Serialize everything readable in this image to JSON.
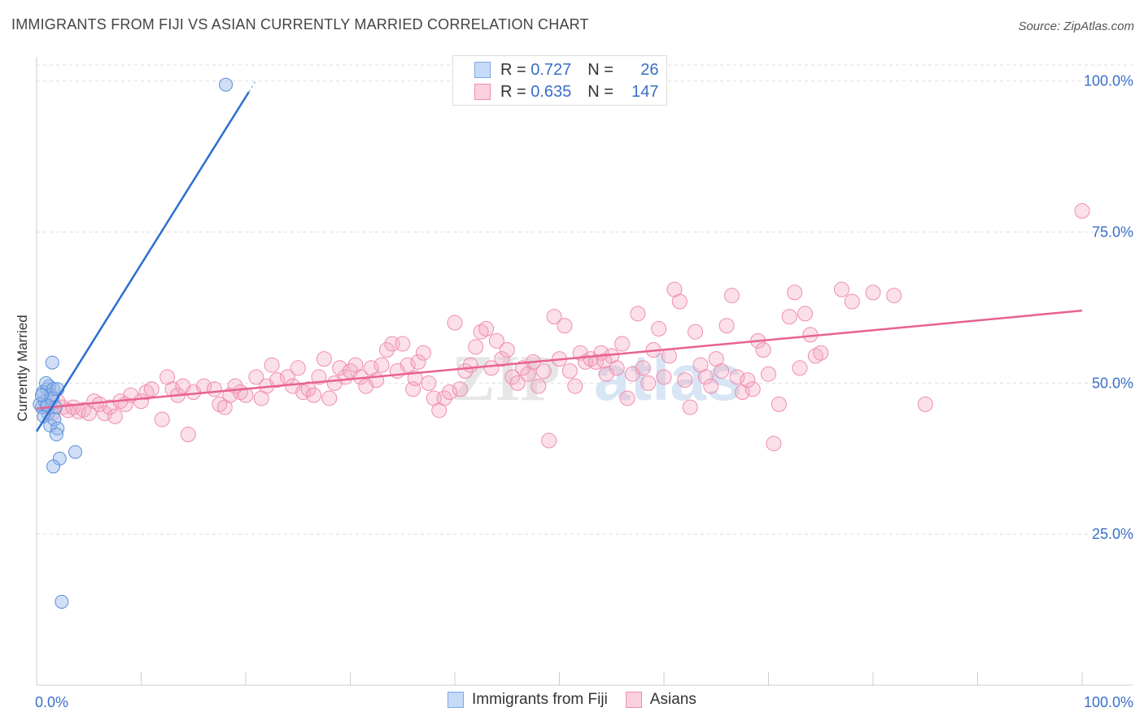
{
  "header": {
    "title": "IMMIGRANTS FROM FIJI VS ASIAN CURRENTLY MARRIED CORRELATION CHART",
    "source": "Source: ZipAtlas.com"
  },
  "legend": {
    "r_label": "R =",
    "n_label": "N =",
    "rows": [
      {
        "r": "0.727",
        "n": "26",
        "color": "#7aa7e6"
      },
      {
        "r": "0.635",
        "n": "147",
        "color": "#f08cb0"
      }
    ]
  },
  "bottom_legend": {
    "items": [
      "Immigrants from Fiji",
      "Asians"
    ]
  },
  "watermark": {
    "zip": "ZIP",
    "atlas": "atlas"
  },
  "chart_data": {
    "type": "scatter",
    "title": "IMMIGRANTS FROM FIJI VS ASIAN CURRENTLY MARRIED CORRELATION CHART",
    "xlabel": "",
    "ylabel": "Currently Married",
    "xlim": [
      0,
      100
    ],
    "ylim": [
      0,
      104
    ],
    "x_tick_labels": [
      "0.0%",
      "100.0%"
    ],
    "y_ticks": [
      25,
      50,
      75,
      100
    ],
    "y_tick_labels": [
      "25.0%",
      "50.0%",
      "75.0%",
      "100.0%"
    ],
    "grid": true,
    "legend_position": "top-center",
    "series": [
      {
        "name": "Immigrants from Fiji",
        "color": "#7aa7e6",
        "line_color": "#2b6fd1",
        "trend": {
          "x": [
            0,
            20.3
          ],
          "y": [
            42.0,
            98.2
          ]
        },
        "points": [
          [
            0.5,
            46
          ],
          [
            0.8,
            47
          ],
          [
            1.0,
            49
          ],
          [
            1.2,
            49.5
          ],
          [
            0.6,
            48.5
          ],
          [
            0.9,
            50
          ],
          [
            1.4,
            48
          ],
          [
            1.6,
            49
          ],
          [
            1.1,
            45
          ],
          [
            0.7,
            44.5
          ],
          [
            1.5,
            47.5
          ],
          [
            1.8,
            46
          ],
          [
            1.3,
            43
          ],
          [
            1.7,
            44
          ],
          [
            2.0,
            42.5
          ],
          [
            1.9,
            41.5
          ],
          [
            2.2,
            37.5
          ],
          [
            1.6,
            36.2
          ],
          [
            3.7,
            38.6
          ],
          [
            1.5,
            53.4
          ],
          [
            2.4,
            13.8
          ],
          [
            18.1,
            99.4
          ],
          [
            0.3,
            46.5
          ],
          [
            2.0,
            49
          ],
          [
            1.0,
            46.3
          ],
          [
            0.5,
            48
          ]
        ]
      },
      {
        "name": "Asians",
        "color": "#f4a6c1",
        "line_color": "#e8628f",
        "trend": {
          "x": [
            0,
            100
          ],
          "y": [
            45.8,
            62.0
          ]
        },
        "points": [
          [
            1.0,
            46
          ],
          [
            1.5,
            45
          ],
          [
            2.0,
            47
          ],
          [
            2.5,
            46
          ],
          [
            3.0,
            45.5
          ],
          [
            3.5,
            46
          ],
          [
            4.0,
            45.3
          ],
          [
            4.5,
            45.6
          ],
          [
            5.0,
            45
          ],
          [
            5.5,
            47
          ],
          [
            6.0,
            46.5
          ],
          [
            6.5,
            45
          ],
          [
            7.0,
            46
          ],
          [
            7.5,
            44.5
          ],
          [
            8.0,
            47
          ],
          [
            8.5,
            46.5
          ],
          [
            9.0,
            48
          ],
          [
            10.0,
            47
          ],
          [
            10.5,
            48.5
          ],
          [
            11.0,
            49
          ],
          [
            12.0,
            44
          ],
          [
            12.5,
            51
          ],
          [
            13.0,
            49
          ],
          [
            13.5,
            48
          ],
          [
            14.0,
            49.5
          ],
          [
            14.5,
            41.5
          ],
          [
            15.0,
            48.5
          ],
          [
            16.0,
            49.5
          ],
          [
            17.0,
            49
          ],
          [
            17.5,
            46.5
          ],
          [
            18.0,
            46
          ],
          [
            18.5,
            48
          ],
          [
            19.0,
            49.5
          ],
          [
            19.5,
            48.5
          ],
          [
            20.0,
            48
          ],
          [
            21.0,
            51
          ],
          [
            21.5,
            47.5
          ],
          [
            22.0,
            49.5
          ],
          [
            22.5,
            53
          ],
          [
            23.0,
            50.5
          ],
          [
            24.0,
            51
          ],
          [
            24.5,
            49.5
          ],
          [
            25.0,
            52.5
          ],
          [
            25.5,
            48.5
          ],
          [
            26.0,
            49
          ],
          [
            26.5,
            48
          ],
          [
            27.0,
            51
          ],
          [
            27.5,
            54
          ],
          [
            28.0,
            47.5
          ],
          [
            28.5,
            50
          ],
          [
            29.0,
            52.5
          ],
          [
            29.5,
            51
          ],
          [
            30.0,
            52
          ],
          [
            30.5,
            53
          ],
          [
            31.0,
            51
          ],
          [
            31.5,
            49.5
          ],
          [
            32.0,
            52.5
          ],
          [
            32.5,
            50.5
          ],
          [
            33.0,
            53
          ],
          [
            33.5,
            55.5
          ],
          [
            34.0,
            56.5
          ],
          [
            34.5,
            52
          ],
          [
            35.0,
            56.5
          ],
          [
            35.5,
            53
          ],
          [
            36.0,
            49
          ],
          [
            36.5,
            53.5
          ],
          [
            37.0,
            55
          ],
          [
            37.5,
            50
          ],
          [
            38.0,
            47.5
          ],
          [
            38.5,
            45.5
          ],
          [
            39.0,
            47.5
          ],
          [
            39.5,
            48.5
          ],
          [
            40.0,
            60
          ],
          [
            40.5,
            49
          ],
          [
            41.0,
            52
          ],
          [
            41.5,
            53
          ],
          [
            42.0,
            56
          ],
          [
            42.5,
            58.5
          ],
          [
            43.0,
            59
          ],
          [
            43.5,
            52.5
          ],
          [
            44.0,
            57
          ],
          [
            44.5,
            54
          ],
          [
            45.0,
            55.5
          ],
          [
            45.5,
            51
          ],
          [
            46.0,
            50
          ],
          [
            46.5,
            52.5
          ],
          [
            47.0,
            51.5
          ],
          [
            47.5,
            53.5
          ],
          [
            48.0,
            49.5
          ],
          [
            48.5,
            52
          ],
          [
            49.0,
            40.5
          ],
          [
            49.5,
            61
          ],
          [
            50.0,
            54
          ],
          [
            50.5,
            59.5
          ],
          [
            51.0,
            52
          ],
          [
            51.5,
            49.5
          ],
          [
            52.0,
            55
          ],
          [
            52.5,
            53.5
          ],
          [
            53.0,
            54
          ],
          [
            53.5,
            53.5
          ],
          [
            54.0,
            55
          ],
          [
            54.5,
            51.5
          ],
          [
            55.0,
            54.5
          ],
          [
            55.5,
            52.5
          ],
          [
            56.0,
            56.5
          ],
          [
            56.5,
            47.5
          ],
          [
            57.0,
            51.5
          ],
          [
            57.5,
            61.5
          ],
          [
            58.0,
            52.5
          ],
          [
            58.5,
            50
          ],
          [
            59.0,
            55.5
          ],
          [
            59.5,
            59
          ],
          [
            60.0,
            51
          ],
          [
            60.5,
            54.5
          ],
          [
            61.0,
            65.5
          ],
          [
            61.5,
            63.5
          ],
          [
            62.0,
            50.5
          ],
          [
            62.5,
            46
          ],
          [
            63.0,
            58.5
          ],
          [
            63.5,
            53
          ],
          [
            64.0,
            51
          ],
          [
            64.5,
            49.5
          ],
          [
            65.0,
            54
          ],
          [
            65.5,
            52
          ],
          [
            66.0,
            59.5
          ],
          [
            66.5,
            64.5
          ],
          [
            67.0,
            51
          ],
          [
            67.5,
            48.5
          ],
          [
            68.0,
            50.5
          ],
          [
            68.5,
            49
          ],
          [
            69.0,
            57
          ],
          [
            69.5,
            55.5
          ],
          [
            70.0,
            51.5
          ],
          [
            70.5,
            40
          ],
          [
            71.0,
            46.5
          ],
          [
            72.0,
            61
          ],
          [
            72.5,
            65
          ],
          [
            73.0,
            52.5
          ],
          [
            73.5,
            61.5
          ],
          [
            74.0,
            58
          ],
          [
            74.5,
            54.5
          ],
          [
            75.0,
            55
          ],
          [
            77.0,
            65.5
          ],
          [
            78.0,
            63.5
          ],
          [
            80.0,
            65
          ],
          [
            82.0,
            64.5
          ],
          [
            85.0,
            46.5
          ],
          [
            100.0,
            78.5
          ],
          [
            36.2,
            50.8
          ],
          [
            54.3,
            53.7
          ]
        ]
      }
    ]
  }
}
